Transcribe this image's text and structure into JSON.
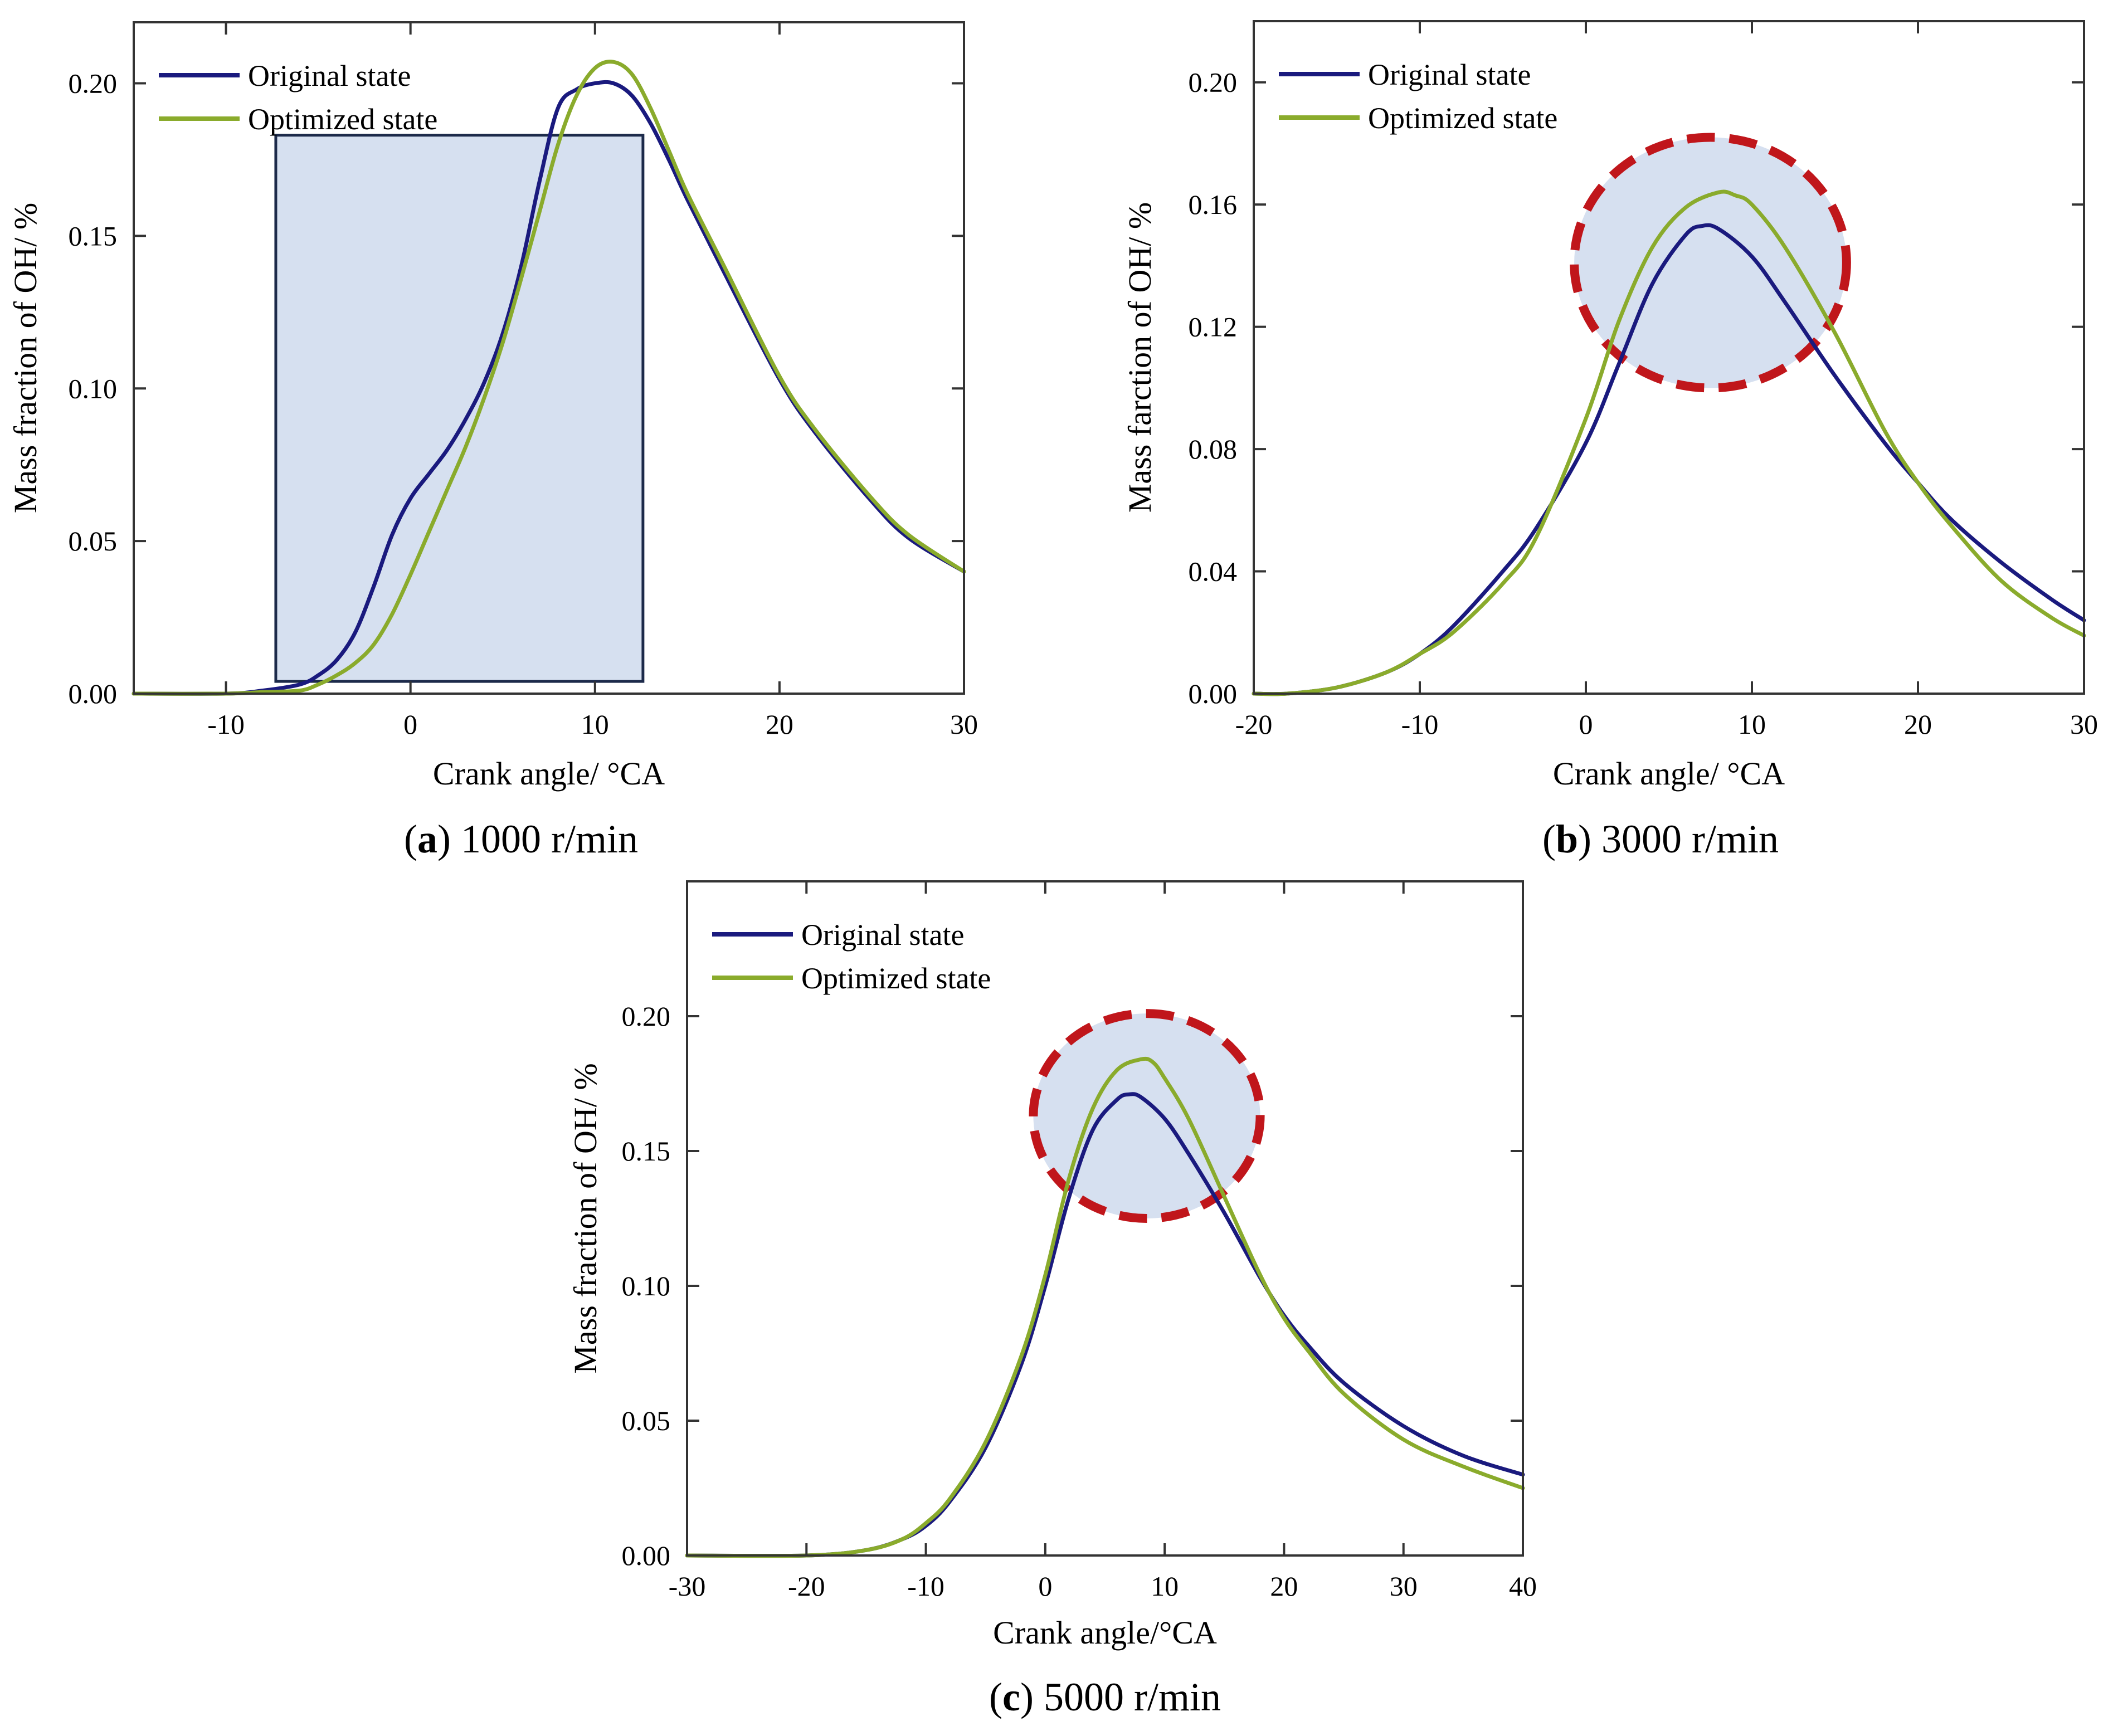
{
  "figure": {
    "colors": {
      "original": "#1a1a7e",
      "optimized": "#8aab2c",
      "highlight_fill": "#d6e0f0",
      "highlight_rect_stroke": "#1c2a4a",
      "highlight_circle_stroke": "#c0161b"
    }
  },
  "chart_data": [
    {
      "type": "line",
      "panel_label": "a",
      "caption": "1000 r/min",
      "xlabel": "Crank angle/ °CA",
      "ylabel": "Mass fraction of OH/ %",
      "xlim": [
        -15,
        30
      ],
      "ylim": [
        0,
        0.22
      ],
      "xticks": [
        -10,
        0,
        10,
        20,
        30
      ],
      "xtick_labels": [
        "-10",
        "0",
        "10",
        "20",
        "30"
      ],
      "yticks": [
        0,
        0.05,
        0.1,
        0.15,
        0.2
      ],
      "ytick_labels": [
        "0.00",
        "0.05",
        "0.10",
        "0.15",
        "0.20"
      ],
      "legend_position": "top-left",
      "grid": false,
      "highlight": {
        "shape": "rectangle",
        "x_range": [
          -7.3,
          12.6
        ],
        "y_range": [
          0.004,
          0.183
        ]
      },
      "series": [
        {
          "name": "Original state",
          "x": [
            -15,
            -10,
            -8,
            -6,
            -5,
            -4,
            -3,
            -2,
            -1,
            0,
            1,
            2,
            3,
            4,
            5,
            6,
            7,
            8,
            9,
            10,
            11,
            12,
            13,
            14,
            15,
            17,
            20,
            22,
            25,
            27,
            30
          ],
          "y": [
            0,
            0,
            0.001,
            0.003,
            0.006,
            0.011,
            0.02,
            0.035,
            0.052,
            0.064,
            0.072,
            0.08,
            0.09,
            0.102,
            0.118,
            0.14,
            0.168,
            0.192,
            0.198,
            0.2,
            0.2,
            0.196,
            0.187,
            0.175,
            0.162,
            0.138,
            0.103,
            0.085,
            0.063,
            0.051,
            0.04
          ]
        },
        {
          "name": "Optimized state",
          "x": [
            -15,
            -10,
            -8,
            -6,
            -5,
            -4,
            -3,
            -2,
            -1,
            0,
            1,
            2,
            3,
            4,
            5,
            6,
            7,
            8,
            9,
            10,
            11,
            12,
            13,
            14,
            15,
            17,
            20,
            22,
            25,
            27,
            30
          ],
          "y": [
            0,
            0,
            0.0005,
            0.001,
            0.003,
            0.006,
            0.01,
            0.016,
            0.026,
            0.039,
            0.053,
            0.067,
            0.081,
            0.097,
            0.115,
            0.136,
            0.158,
            0.18,
            0.196,
            0.205,
            0.207,
            0.203,
            0.192,
            0.178,
            0.164,
            0.14,
            0.104,
            0.086,
            0.064,
            0.052,
            0.04
          ]
        }
      ]
    },
    {
      "type": "line",
      "panel_label": "b",
      "caption": "3000 r/min",
      "xlabel": "Crank angle/ °CA",
      "ylabel": "Mass farction of OH/ %",
      "xlim": [
        -20,
        30
      ],
      "ylim": [
        0,
        0.22
      ],
      "xticks": [
        -20,
        -10,
        0,
        10,
        20,
        30
      ],
      "xtick_labels": [
        "-20",
        "-10",
        "0",
        "10",
        "20",
        "30"
      ],
      "yticks": [
        0,
        0.04,
        0.08,
        0.12,
        0.16,
        0.2
      ],
      "ytick_labels": [
        "0.00",
        "0.04",
        "0.08",
        "0.12",
        "0.16",
        "0.20"
      ],
      "legend_position": "top-left",
      "grid": false,
      "highlight": {
        "shape": "circle",
        "center": [
          7.5,
          0.141
        ],
        "x_radius": 8.2,
        "y_radius": 0.041
      },
      "series": [
        {
          "name": "Original state",
          "x": [
            -20,
            -18,
            -15,
            -12,
            -10,
            -8,
            -5,
            -3,
            0,
            2,
            4,
            6,
            7,
            8,
            10,
            12,
            15,
            18,
            20,
            22,
            25,
            28,
            30
          ],
          "y": [
            0,
            0,
            0.002,
            0.007,
            0.013,
            0.022,
            0.04,
            0.054,
            0.082,
            0.108,
            0.134,
            0.15,
            0.153,
            0.152,
            0.143,
            0.128,
            0.104,
            0.082,
            0.069,
            0.057,
            0.043,
            0.031,
            0.024
          ]
        },
        {
          "name": "Optimized state",
          "x": [
            -20,
            -18,
            -15,
            -12,
            -10,
            -8,
            -5,
            -3,
            0,
            2,
            4,
            6,
            8,
            9,
            10,
            12,
            15,
            18,
            20,
            22,
            25,
            28,
            30
          ],
          "y": [
            0,
            0,
            0.002,
            0.007,
            0.013,
            0.02,
            0.036,
            0.051,
            0.09,
            0.122,
            0.146,
            0.159,
            0.164,
            0.163,
            0.16,
            0.146,
            0.118,
            0.086,
            0.069,
            0.055,
            0.037,
            0.025,
            0.019
          ]
        }
      ]
    },
    {
      "type": "line",
      "panel_label": "c",
      "caption": "5000 r/min",
      "xlabel": "Crank angle/°CA",
      "ylabel": "Mass fraction of OH/ %",
      "xlim": [
        -30,
        40
      ],
      "ylim": [
        0,
        0.25
      ],
      "xticks": [
        -30,
        -20,
        -10,
        0,
        10,
        20,
        30,
        40
      ],
      "xtick_labels": [
        "-30",
        "-20",
        "-10",
        "0",
        "10",
        "20",
        "30",
        "40"
      ],
      "yticks": [
        0,
        0.05,
        0.1,
        0.15,
        0.2
      ],
      "ytick_labels": [
        "0.00",
        "0.05",
        "0.10",
        "0.15",
        "0.20"
      ],
      "legend_position": "top-left",
      "grid": false,
      "highlight": {
        "shape": "circle",
        "center": [
          8.5,
          0.163
        ],
        "x_radius": 9.5,
        "y_radius": 0.038
      },
      "series": [
        {
          "name": "Original state",
          "x": [
            -30,
            -20,
            -15,
            -12,
            -10,
            -8,
            -5,
            -2,
            0,
            2,
            4,
            6,
            7,
            8,
            10,
            12,
            15,
            18,
            20,
            22,
            25,
            30,
            35,
            40
          ],
          "y": [
            0,
            0,
            0.002,
            0.006,
            0.011,
            0.02,
            0.04,
            0.071,
            0.1,
            0.133,
            0.158,
            0.169,
            0.171,
            0.17,
            0.162,
            0.149,
            0.127,
            0.103,
            0.089,
            0.078,
            0.064,
            0.048,
            0.037,
            0.03
          ]
        },
        {
          "name": "Optimized state",
          "x": [
            -30,
            -20,
            -15,
            -12,
            -10,
            -8,
            -5,
            -2,
            0,
            2,
            4,
            6,
            8,
            9,
            10,
            12,
            15,
            18,
            20,
            22,
            25,
            30,
            35,
            40
          ],
          "y": [
            0,
            0,
            0.002,
            0.006,
            0.012,
            0.021,
            0.042,
            0.074,
            0.104,
            0.14,
            0.166,
            0.18,
            0.184,
            0.183,
            0.177,
            0.162,
            0.133,
            0.104,
            0.088,
            0.076,
            0.06,
            0.043,
            0.033,
            0.025
          ]
        }
      ]
    }
  ]
}
